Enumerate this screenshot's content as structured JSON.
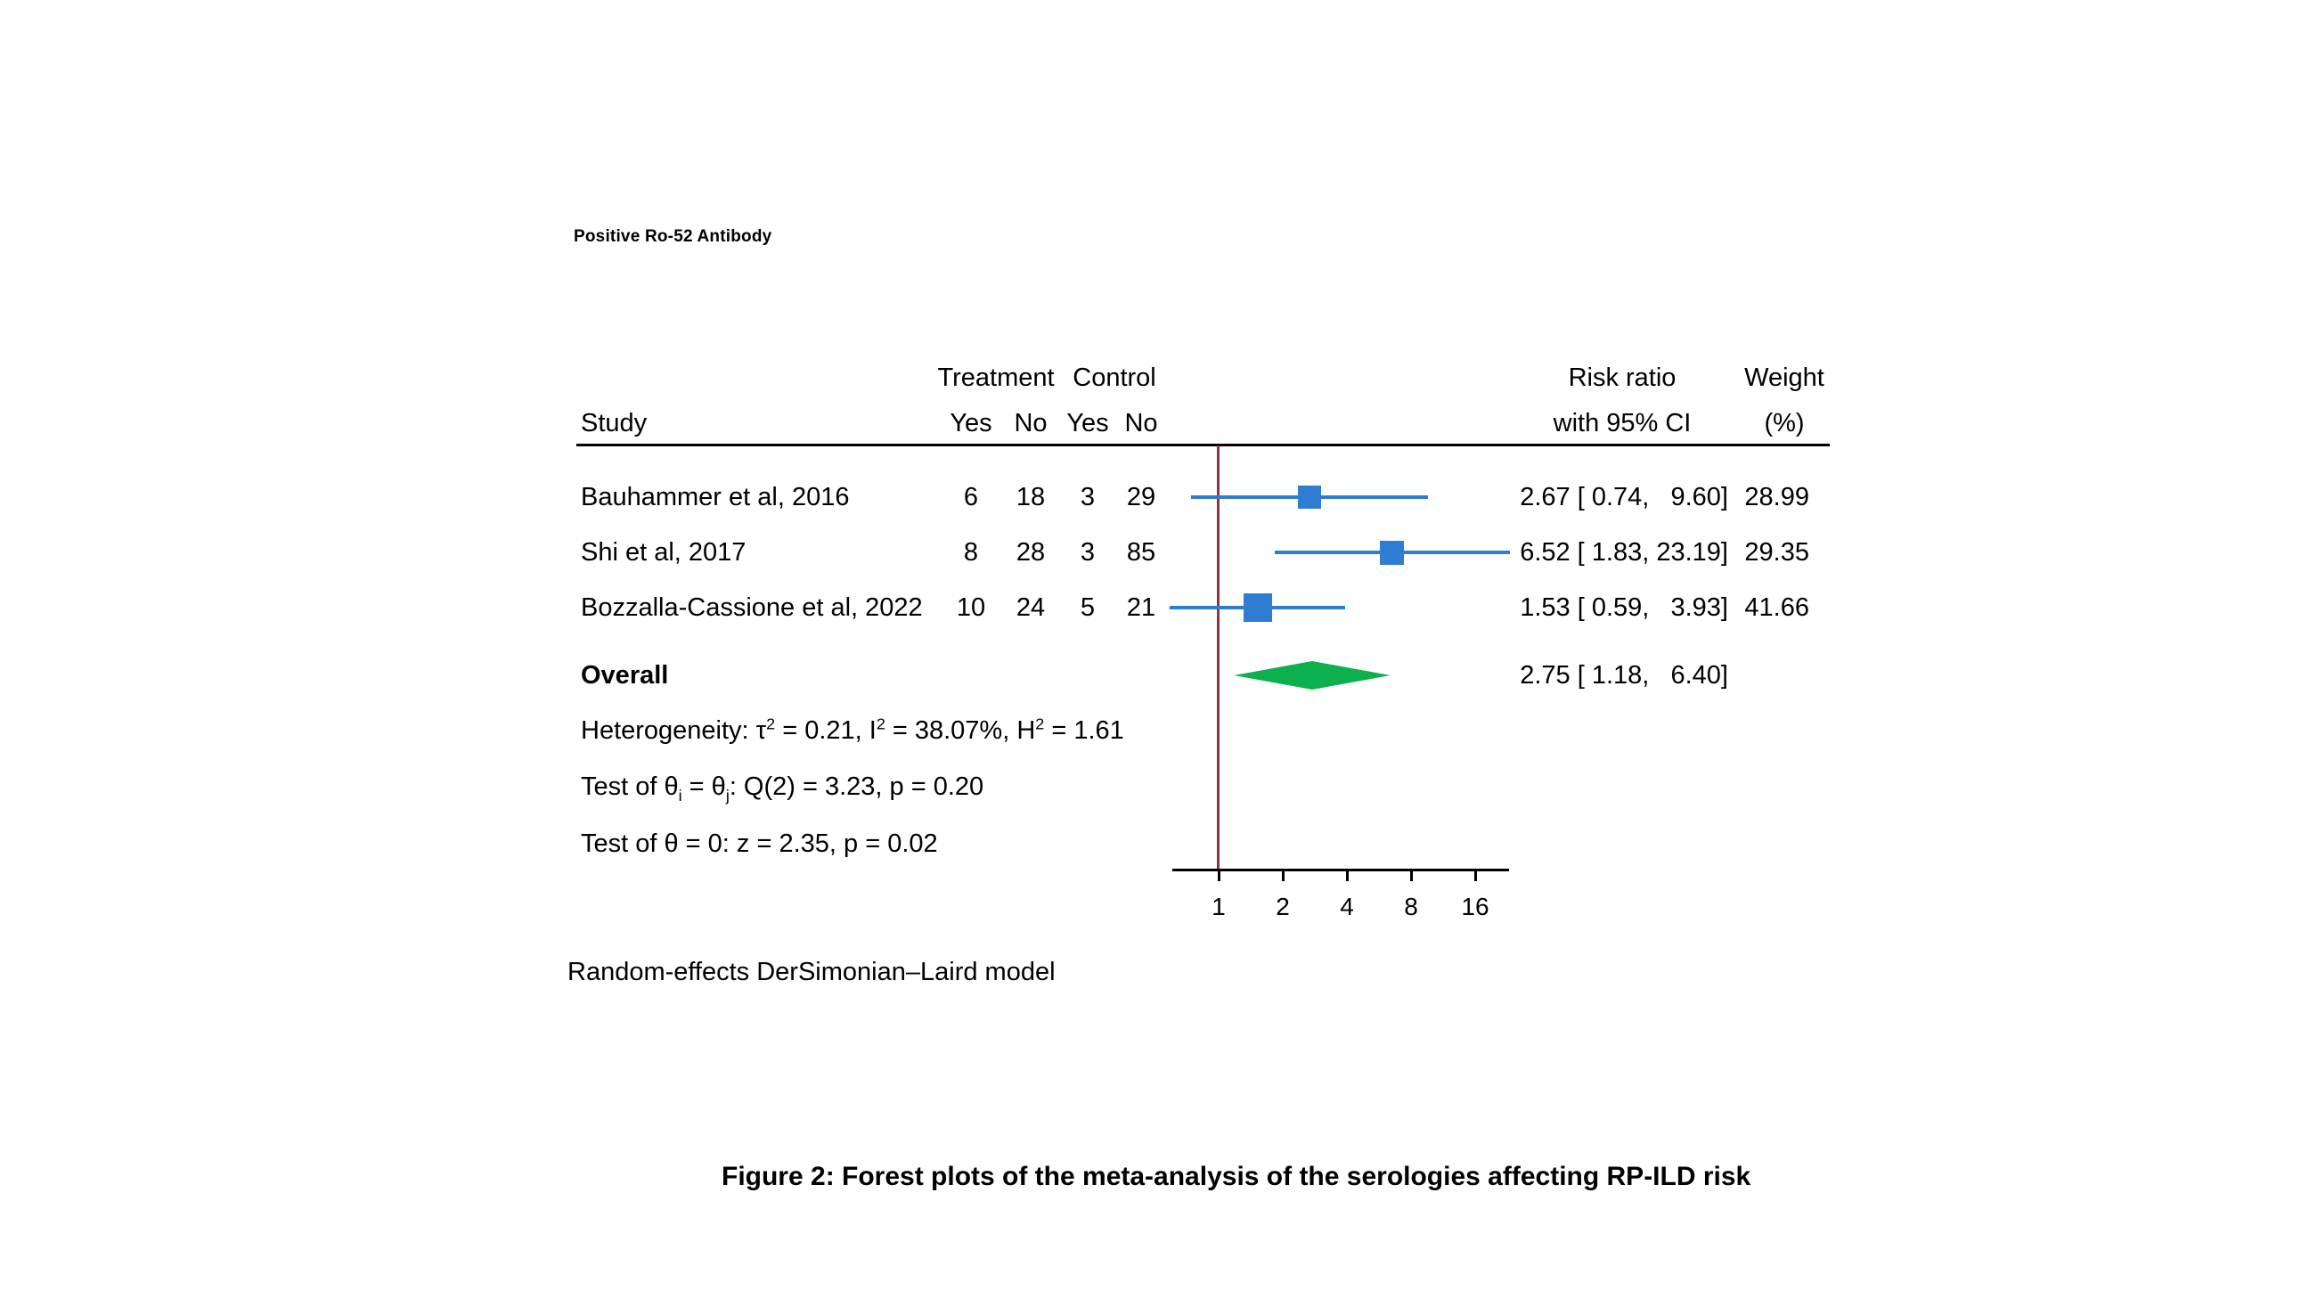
{
  "figure": {
    "caption": "Figure 2: Forest plots of the meta-analysis of the serologies affecting RP-ILD risk"
  },
  "chart_data": {
    "type": "forest",
    "title": "Positive Ro-52 Antibody",
    "x_scale": "log2",
    "x_ticks": [
      1,
      2,
      4,
      8,
      16
    ],
    "columns": {
      "study": "Study",
      "treatment": "Treatment",
      "control": "Control",
      "yes": "Yes",
      "no": "No",
      "risk_ratio": "Risk ratio",
      "risk_ratio_sub": "with 95% CI",
      "weight": "Weight",
      "weight_sub": "(%)"
    },
    "studies": [
      {
        "name": "Bauhammer et al, 2016",
        "treatment_yes": "6",
        "treatment_no": "18",
        "control_yes": "3",
        "control_no": "29",
        "rr": 2.67,
        "ci_low": 0.74,
        "ci_high": 9.6,
        "rr_label": "2.67 [ 0.74,   9.60]",
        "weight": 28.99,
        "weight_label": "28.99"
      },
      {
        "name": "Shi et al, 2017",
        "treatment_yes": "8",
        "treatment_no": "28",
        "control_yes": "3",
        "control_no": "85",
        "rr": 6.52,
        "ci_low": 1.83,
        "ci_high": 23.19,
        "rr_label": "6.52 [ 1.83, 23.19]",
        "weight": 29.35,
        "weight_label": "29.35"
      },
      {
        "name": "Bozzalla-Cassione et al, 2022",
        "treatment_yes": "10",
        "treatment_no": "24",
        "control_yes": "5",
        "control_no": "21",
        "rr": 1.53,
        "ci_low": 0.59,
        "ci_high": 3.93,
        "rr_label": "1.53 [ 0.59,   3.93]",
        "weight": 41.66,
        "weight_label": "41.66"
      }
    ],
    "overall": {
      "label": "Overall",
      "rr": 2.75,
      "ci_low": 1.18,
      "ci_high": 6.4,
      "rr_label": "2.75 [ 1.18,   6.40]"
    },
    "stats": [
      {
        "segments": [
          {
            "t": "text",
            "v": "Heterogeneity: τ"
          },
          {
            "t": "sup",
            "v": "2"
          },
          {
            "t": "text",
            "v": " = 0.21, I"
          },
          {
            "t": "sup",
            "v": "2"
          },
          {
            "t": "text",
            "v": " = 38.07%, H"
          },
          {
            "t": "sup",
            "v": "2"
          },
          {
            "t": "text",
            "v": " = 1.61"
          }
        ]
      },
      {
        "segments": [
          {
            "t": "text",
            "v": "Test of θ"
          },
          {
            "t": "sub",
            "v": "i"
          },
          {
            "t": "text",
            "v": " = θ"
          },
          {
            "t": "sub",
            "v": "j"
          },
          {
            "t": "text",
            "v": ": Q(2) = 3.23, p = 0.20"
          }
        ]
      },
      {
        "segments": [
          {
            "t": "text",
            "v": "Test of θ = 0: z = 2.35, p = 0.02"
          }
        ]
      }
    ],
    "footer": "Random-effects DerSimonian–Laird model",
    "colors": {
      "marker": "#2e7dd2",
      "diamond": "#0cb04e",
      "ref_line": "#90353b",
      "axis": "#000000"
    }
  }
}
